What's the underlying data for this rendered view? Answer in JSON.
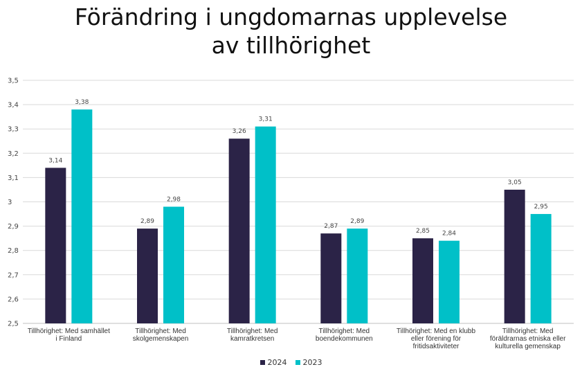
{
  "chart_data": {
    "type": "bar",
    "title_lines": [
      "Förändring i ungdomarnas upplevelse",
      "av tillhörighet"
    ],
    "categories": [
      [
        "Tillhörighet: Med samhället",
        "i Finland"
      ],
      [
        "Tillhörighet: Med",
        "skolgemenskapen"
      ],
      [
        "Tillhörighet: Med",
        "kamratkretsen"
      ],
      [
        "Tillhörighet: Med",
        "boendekommunen"
      ],
      [
        "Tillhörighet: Med en klubb",
        "eller förening för",
        "fritidsaktiviteter"
      ],
      [
        "Tillhörighet: Med",
        "föräldrarnas etniska eller",
        "kulturella gemenskap"
      ]
    ],
    "series": [
      {
        "name": "2024",
        "color": "#2b2347",
        "values": [
          3.14,
          2.89,
          3.26,
          2.87,
          2.85,
          3.05
        ],
        "labels": [
          "3,14",
          "2,89",
          "3,26",
          "2,87",
          "2,85",
          "3,05"
        ]
      },
      {
        "name": "2023",
        "color": "#00c0c8",
        "values": [
          3.38,
          2.98,
          3.31,
          2.89,
          2.84,
          2.95
        ],
        "labels": [
          "3,38",
          "2,98",
          "3,31",
          "2,89",
          "2,84",
          "2,95"
        ]
      }
    ],
    "yticks": [
      "2,5",
      "2,6",
      "2,7",
      "2,8",
      "2,9",
      "3",
      "3,1",
      "3,2",
      "3,3",
      "3,4",
      "3,5"
    ],
    "ylim": [
      2.5,
      3.5
    ],
    "grid": true,
    "legend_position": "bottom"
  }
}
